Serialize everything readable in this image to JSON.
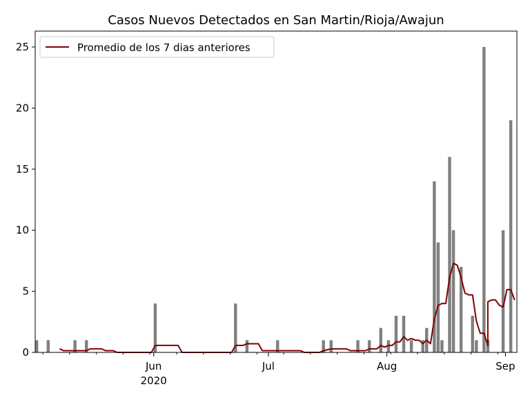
{
  "chart_data": {
    "type": "bar",
    "title": "Casos Nuevos Detectados en San Martin/Rioja/Awajun",
    "xlabel": "",
    "ylabel": "",
    "x_range": [
      "2020-05-01",
      "2020-09-03"
    ],
    "ylim": [
      0,
      26.3
    ],
    "y_ticks": [
      0,
      5,
      10,
      15,
      20,
      25
    ],
    "x_ticks": [
      {
        "date": "2020-06-01",
        "label": "Jun",
        "sublabel": "2020"
      },
      {
        "date": "2020-07-01",
        "label": "Jul",
        "sublabel": ""
      },
      {
        "date": "2020-08-01",
        "label": "Aug",
        "sublabel": ""
      },
      {
        "date": "2020-09-01",
        "label": "Sep",
        "sublabel": ""
      }
    ],
    "grid": false,
    "legend_position": "top-left",
    "bar_color": "#808080",
    "line_color": "#800000",
    "series": [
      {
        "name": "",
        "kind": "bar",
        "points": [
          [
            "2020-05-01",
            1
          ],
          [
            "2020-05-04",
            1
          ],
          [
            "2020-05-11",
            1
          ],
          [
            "2020-05-14",
            1
          ],
          [
            "2020-06-01",
            4
          ],
          [
            "2020-06-22",
            4
          ],
          [
            "2020-06-25",
            1
          ],
          [
            "2020-07-03",
            1
          ],
          [
            "2020-07-15",
            1
          ],
          [
            "2020-07-17",
            1
          ],
          [
            "2020-07-24",
            1
          ],
          [
            "2020-07-27",
            1
          ],
          [
            "2020-07-30",
            2
          ],
          [
            "2020-08-01",
            1
          ],
          [
            "2020-08-03",
            3
          ],
          [
            "2020-08-05",
            3
          ],
          [
            "2020-08-07",
            1
          ],
          [
            "2020-08-10",
            1
          ],
          [
            "2020-08-11",
            2
          ],
          [
            "2020-08-13",
            14
          ],
          [
            "2020-08-14",
            9
          ],
          [
            "2020-08-15",
            1
          ],
          [
            "2020-08-17",
            16
          ],
          [
            "2020-08-18",
            10
          ],
          [
            "2020-08-20",
            7
          ],
          [
            "2020-08-23",
            3
          ],
          [
            "2020-08-24",
            1
          ],
          [
            "2020-08-26",
            25
          ],
          [
            "2020-08-27",
            1
          ],
          [
            "2020-08-31",
            10
          ],
          [
            "2020-09-02",
            19
          ]
        ]
      },
      {
        "name": "Promedio de los 7 dias anteriores",
        "kind": "line",
        "points": [
          [
            "2020-05-07",
            0.3
          ],
          [
            "2020-05-08",
            0.14
          ],
          [
            "2020-05-10",
            0.14
          ],
          [
            "2020-05-11",
            0.14
          ],
          [
            "2020-05-12",
            0.14
          ],
          [
            "2020-05-14",
            0.14
          ],
          [
            "2020-05-15",
            0.29
          ],
          [
            "2020-05-17",
            0.29
          ],
          [
            "2020-05-18",
            0.29
          ],
          [
            "2020-05-19",
            0.14
          ],
          [
            "2020-05-21",
            0.14
          ],
          [
            "2020-05-22",
            0
          ],
          [
            "2020-05-31",
            0
          ],
          [
            "2020-06-01",
            0.57
          ],
          [
            "2020-06-07",
            0.57
          ],
          [
            "2020-06-08",
            0
          ],
          [
            "2020-06-21",
            0
          ],
          [
            "2020-06-22",
            0.57
          ],
          [
            "2020-06-24",
            0.57
          ],
          [
            "2020-06-25",
            0.71
          ],
          [
            "2020-06-28",
            0.71
          ],
          [
            "2020-06-29",
            0.14
          ],
          [
            "2020-07-02",
            0.14
          ],
          [
            "2020-07-03",
            0.14
          ],
          [
            "2020-07-09",
            0.14
          ],
          [
            "2020-07-10",
            0
          ],
          [
            "2020-07-14",
            0
          ],
          [
            "2020-07-15",
            0.14
          ],
          [
            "2020-07-17",
            0.29
          ],
          [
            "2020-07-21",
            0.29
          ],
          [
            "2020-07-22",
            0.14
          ],
          [
            "2020-07-24",
            0.14
          ],
          [
            "2020-07-26",
            0.14
          ],
          [
            "2020-07-27",
            0.29
          ],
          [
            "2020-07-29",
            0.29
          ],
          [
            "2020-07-30",
            0.57
          ],
          [
            "2020-07-31",
            0.43
          ],
          [
            "2020-08-01",
            0.57
          ],
          [
            "2020-08-02",
            0.57
          ],
          [
            "2020-08-03",
            0.86
          ],
          [
            "2020-08-04",
            0.86
          ],
          [
            "2020-08-05",
            1.29
          ],
          [
            "2020-08-06",
            1.0
          ],
          [
            "2020-08-07",
            1.14
          ],
          [
            "2020-08-08",
            1.0
          ],
          [
            "2020-08-09",
            1.0
          ],
          [
            "2020-08-10",
            0.71
          ],
          [
            "2020-08-11",
            1.0
          ],
          [
            "2020-08-12",
            0.71
          ],
          [
            "2020-08-13",
            2.71
          ],
          [
            "2020-08-14",
            3.86
          ],
          [
            "2020-08-15",
            4.0
          ],
          [
            "2020-08-16",
            4.0
          ],
          [
            "2020-08-17",
            6.14
          ],
          [
            "2020-08-18",
            7.29
          ],
          [
            "2020-08-19",
            7.14
          ],
          [
            "2020-08-20",
            6.14
          ],
          [
            "2020-08-21",
            4.86
          ],
          [
            "2020-08-22",
            4.71
          ],
          [
            "2020-08-23",
            4.71
          ],
          [
            "2020-08-24",
            2.57
          ],
          [
            "2020-08-25",
            1.57
          ],
          [
            "2020-08-26",
            1.57
          ],
          [
            "2020-08-27",
            0.57
          ],
          [
            "2020-08-27",
            4.14
          ],
          [
            "2020-08-28",
            4.29
          ],
          [
            "2020-08-29",
            4.29
          ],
          [
            "2020-08-30",
            3.86
          ],
          [
            "2020-08-31",
            3.71
          ],
          [
            "2020-09-01",
            5.14
          ],
          [
            "2020-09-02",
            5.14
          ],
          [
            "2020-09-03",
            4.29
          ]
        ]
      }
    ]
  }
}
